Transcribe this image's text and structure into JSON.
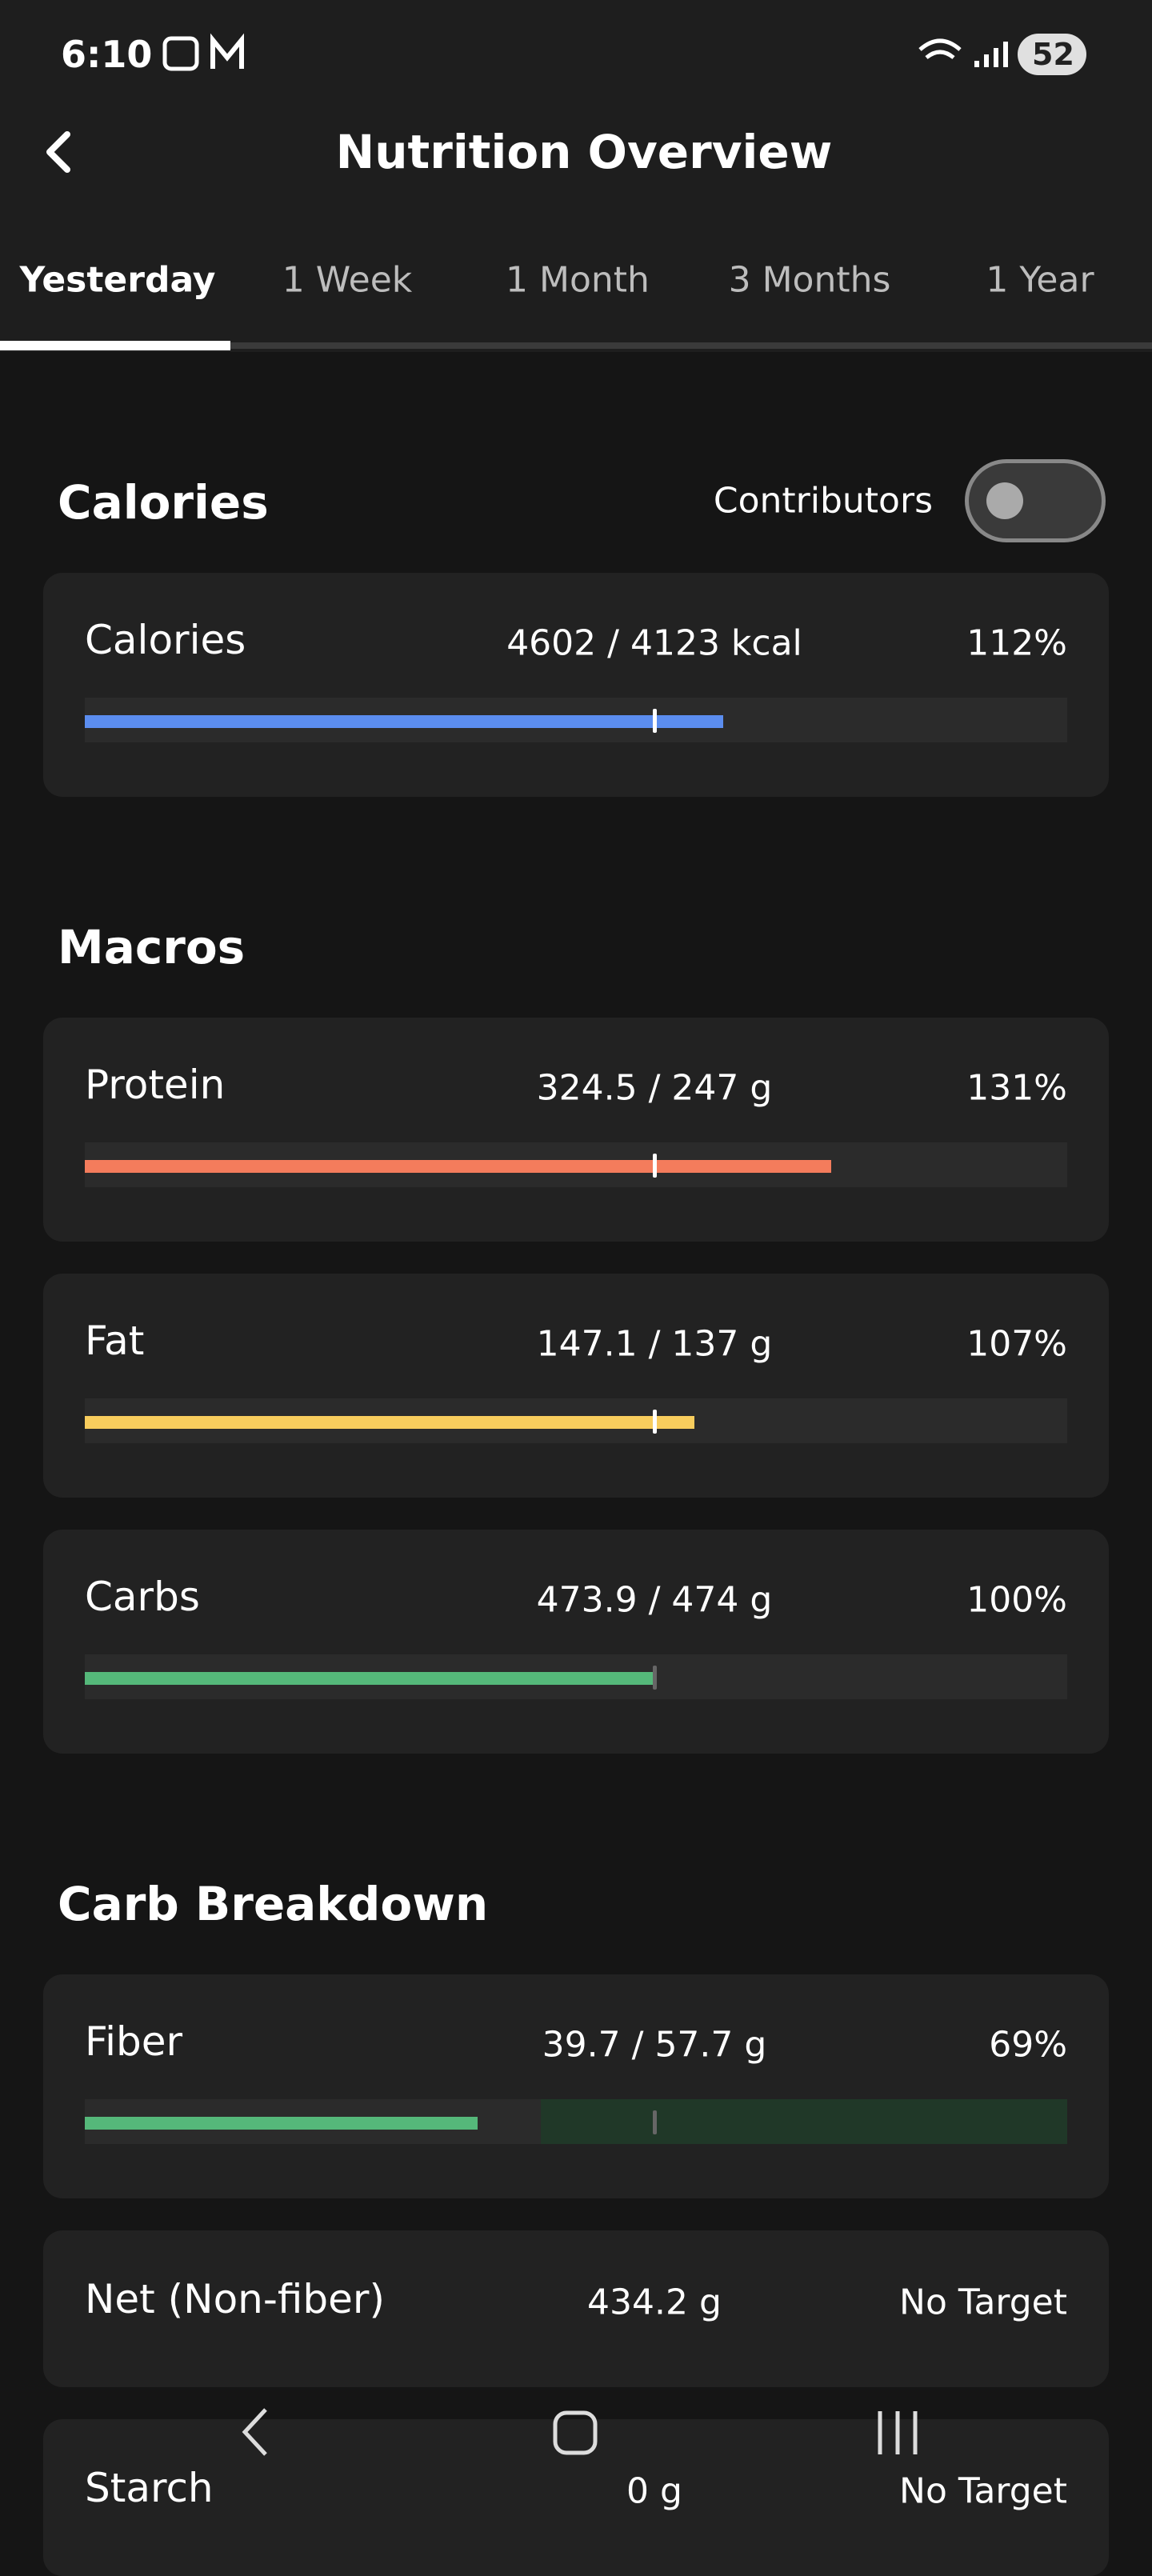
{
  "status_bar": {
    "time": "6:10",
    "battery": "52"
  },
  "header": {
    "title": "Nutrition Overview"
  },
  "tabs": [
    "Yesterday",
    "1 Week",
    "1 Month",
    "3 Months",
    "1 Year"
  ],
  "sections": [
    {
      "title": "Calories",
      "toggle_label": "Contributors",
      "items": [
        {
          "name": "Calories",
          "amount": "4602 / 4123 kcal",
          "percent": {
            "value": 112,
            "label": "112%"
          },
          "color": "#5b8def"
        }
      ]
    },
    {
      "title": "Macros",
      "items": [
        {
          "name": "Protein",
          "amount": "324.5 / 247 g",
          "percent": {
            "value": 131,
            "label": "131%"
          },
          "color": "#f47c5c"
        },
        {
          "name": "Fat",
          "amount": "147.1 / 137 g",
          "percent": {
            "value": 107,
            "label": "107%"
          },
          "color": "#f8cd5d"
        },
        {
          "name": "Carbs",
          "amount": "473.9 / 474 g",
          "percent": {
            "value": 100,
            "label": "100%"
          },
          "color": "#55b87a"
        }
      ]
    },
    {
      "title": "Carb Breakdown",
      "items": [
        {
          "name": "Fiber",
          "amount": "39.7 / 57.7 g",
          "percent": {
            "value": 69,
            "label": "69%"
          },
          "color": "#55b87a",
          "target_zone": true
        },
        {
          "name": "Net (Non-fiber)",
          "amount": "434.2 g",
          "status": "No Target"
        },
        {
          "name": "Starch",
          "amount": "0 g",
          "status": "No Target"
        }
      ]
    }
  ]
}
